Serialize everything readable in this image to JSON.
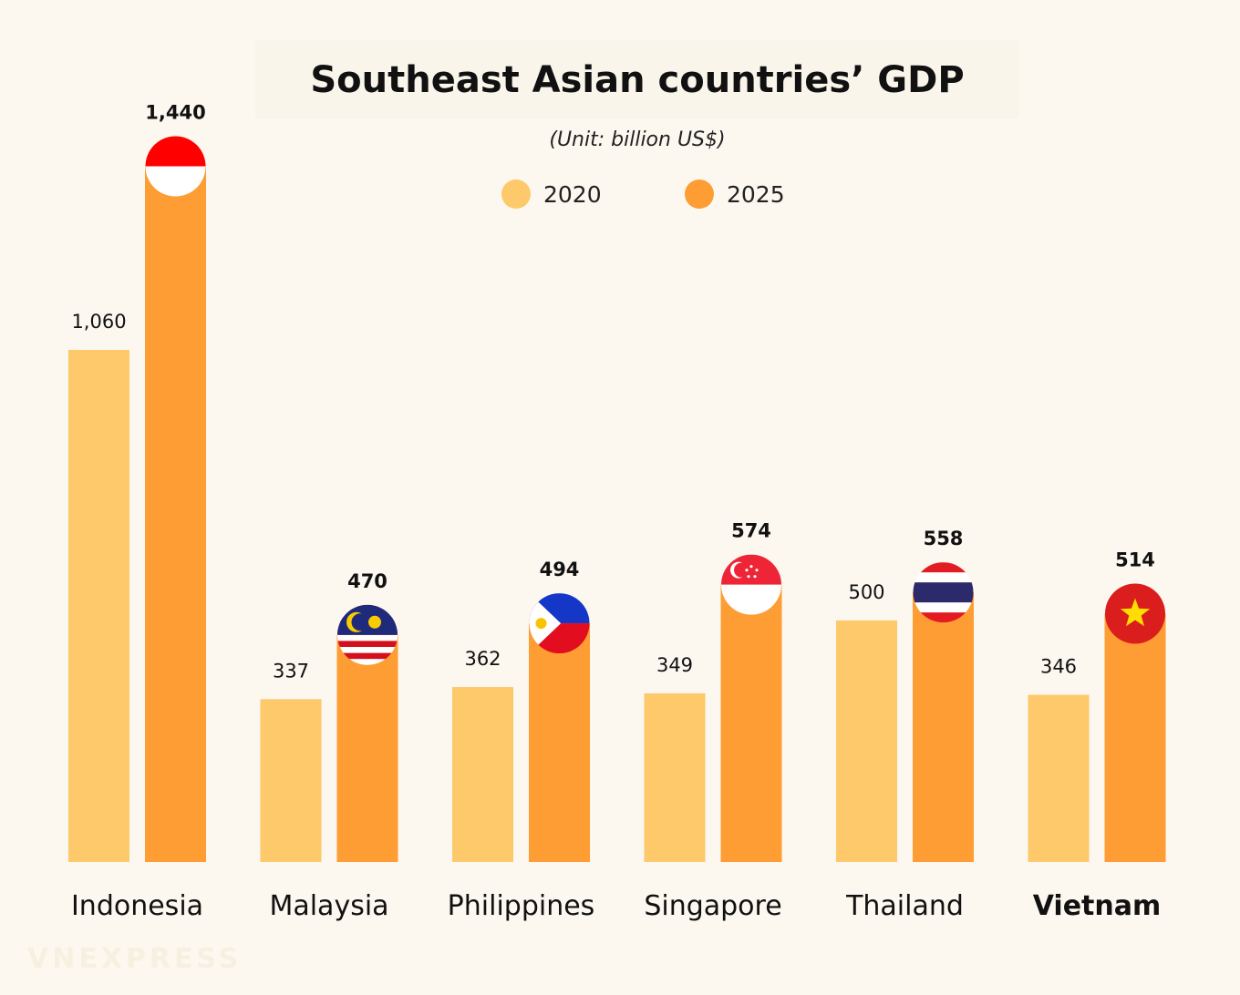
{
  "chart_data": {
    "type": "bar",
    "title": "Southeast Asian countries’ GDP",
    "subtitle": "(Unit: billion US$)",
    "xlabel": "",
    "ylabel": "",
    "ylim": [
      0,
      1500
    ],
    "grid": false,
    "legend_placement": "top-center",
    "categories": [
      "Indonesia",
      "Malaysia",
      "Philippines",
      "Singapore",
      "Thailand",
      "Vietnam"
    ],
    "highlight_category": "Vietnam",
    "series": [
      {
        "name": "2020",
        "color": "#fdc96a",
        "values": [
          1060,
          337,
          362,
          349,
          500,
          346
        ],
        "labels": [
          "1,060",
          "337",
          "362",
          "349",
          "500",
          "346"
        ]
      },
      {
        "name": "2025",
        "color": "#fe9d33",
        "values": [
          1440,
          470,
          494,
          574,
          558,
          514
        ],
        "labels": [
          "1,440",
          "470",
          "494",
          "574",
          "558",
          "514"
        ]
      }
    ],
    "flag_icons": [
      "indonesia-flag",
      "malaysia-flag",
      "philippines-flag",
      "singapore-flag",
      "thailand-flag",
      "vietnam-flag"
    ]
  },
  "watermark": "VNEXPRESS"
}
